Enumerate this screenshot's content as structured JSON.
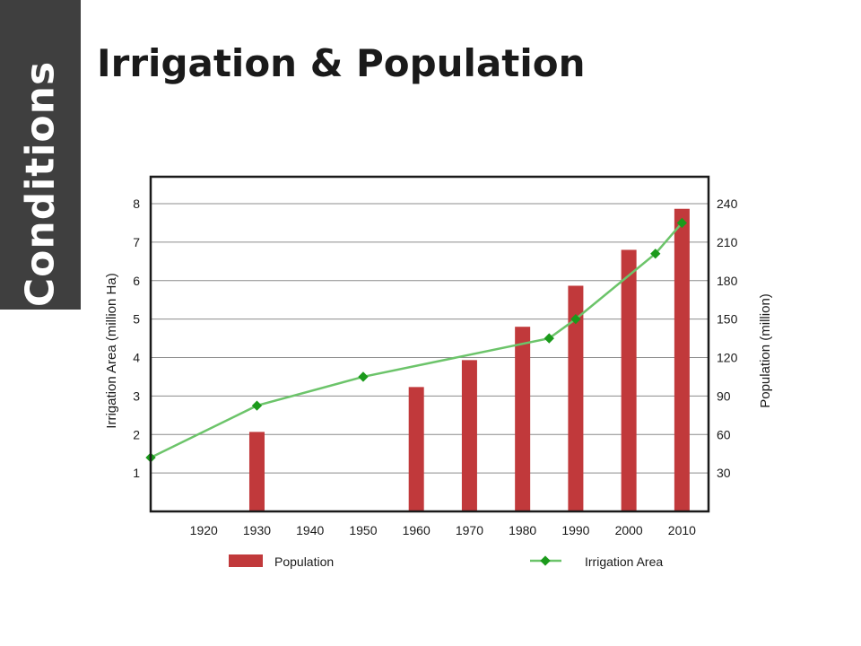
{
  "slide": {
    "side_label": "Conditions",
    "title": "Irrigation & Population",
    "colors": {
      "side_tab": "#3f3f3f",
      "bar": "#c1393b",
      "line": "#6cc46a",
      "marker": "#1b9a1b"
    }
  },
  "chart_data": {
    "type": "bar",
    "title": "",
    "categories": [
      "1920",
      "1930",
      "1940",
      "1950",
      "1960",
      "1970",
      "1980",
      "1990",
      "2000",
      "2010"
    ],
    "ylabel_left": "Irrigation Area (million Ha)",
    "ylabel_right": "Population (million)",
    "y_left_ticks": [
      "1",
      "2",
      "3",
      "4",
      "5",
      "6",
      "7",
      "8"
    ],
    "y_right_ticks": [
      "30",
      "60",
      "90",
      "120",
      "150",
      "180",
      "210",
      "240"
    ],
    "ylim_left": [
      0,
      8.7
    ],
    "ylim_right": [
      0,
      261
    ],
    "grid": true,
    "legend_position": "bottom",
    "series": [
      {
        "name": "Population",
        "type": "bar",
        "axis": "right",
        "x": [
          1930,
          1960,
          1970,
          1980,
          1990,
          2000,
          2010
        ],
        "values": [
          62,
          97,
          118,
          144,
          176,
          204,
          236
        ]
      },
      {
        "name": "Irrigation Area",
        "type": "line",
        "axis": "left",
        "x": [
          1910,
          1930,
          1950,
          1985,
          1990,
          2005,
          2010
        ],
        "values": [
          1.4,
          2.75,
          3.5,
          4.5,
          5.0,
          6.7,
          7.5
        ]
      }
    ]
  }
}
